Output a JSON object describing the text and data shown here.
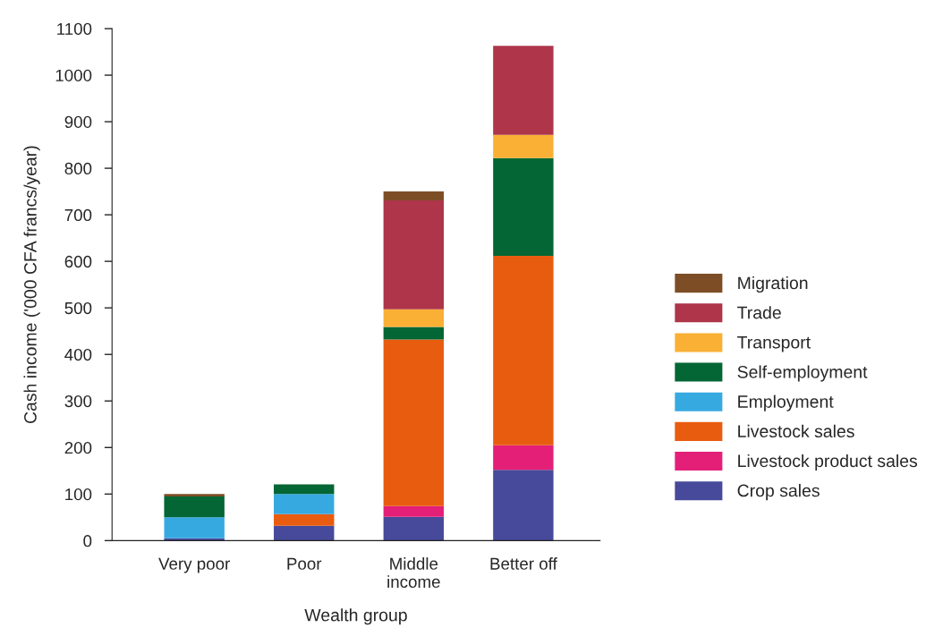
{
  "chart_data": {
    "type": "bar",
    "stacked": true,
    "xlabel": "Wealth group",
    "ylabel": "Cash income ('000 CFA francs/year)",
    "categories": [
      "Very poor",
      "Poor",
      "Middle\nincome",
      "Better off"
    ],
    "series": [
      {
        "name": "Crop sales",
        "color": "#474a9a",
        "values": [
          5,
          32,
          51,
          152
        ]
      },
      {
        "name": "Livestock product sales",
        "color": "#e41f78",
        "values": [
          0,
          0,
          23,
          53
        ]
      },
      {
        "name": "Livestock sales",
        "color": "#e85c0f",
        "values": [
          0,
          25,
          358,
          407
        ]
      },
      {
        "name": "Employment",
        "color": "#37a9e1",
        "values": [
          45,
          43,
          0,
          0
        ]
      },
      {
        "name": "Self-employment",
        "color": "#036634",
        "values": [
          45,
          21,
          27,
          210
        ]
      },
      {
        "name": "Transport",
        "color": "#f9b035",
        "values": [
          0,
          0,
          38,
          50
        ]
      },
      {
        "name": "Trade",
        "color": "#ae354a",
        "values": [
          0,
          0,
          234,
          191
        ]
      },
      {
        "name": "Migration",
        "color": "#7d4e26",
        "values": [
          5,
          0,
          19,
          0
        ]
      }
    ],
    "ylim": [
      0,
      1100
    ],
    "yticks": [
      0,
      100,
      200,
      300,
      400,
      500,
      600,
      700,
      800,
      900,
      1000,
      1100
    ],
    "grid": false,
    "legend": "right"
  }
}
